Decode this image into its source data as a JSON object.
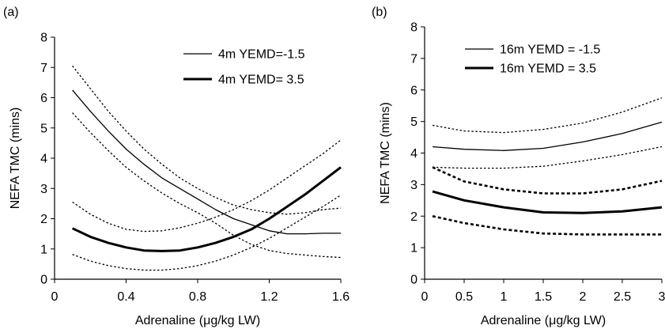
{
  "chart_data": [
    {
      "type": "line",
      "panel_label": "(a)",
      "xlabel": "Adrenaline (μg/kg LW)",
      "ylabel": "NEFA TMC (mins)",
      "xlim": [
        0,
        1.6
      ],
      "ylim": [
        0,
        8
      ],
      "xticks": [
        "0",
        "0.4",
        "0.8",
        "1.2",
        "1.6"
      ],
      "yticks": [
        "0",
        "1",
        "2",
        "3",
        "4",
        "5",
        "6",
        "7",
        "8"
      ],
      "legend_position": "top-right",
      "series": [
        {
          "name": "4m YEMD=-1.5",
          "style": "thin-solid",
          "x": [
            0.1,
            0.2,
            0.3,
            0.4,
            0.5,
            0.6,
            0.7,
            0.8,
            0.9,
            1.0,
            1.1,
            1.2,
            1.3,
            1.4,
            1.5,
            1.6
          ],
          "y": [
            6.25,
            5.55,
            4.9,
            4.3,
            3.8,
            3.35,
            3.0,
            2.65,
            2.3,
            2.0,
            1.8,
            1.6,
            1.5,
            1.5,
            1.52,
            1.52
          ]
        },
        {
          "name": "",
          "style": "thin-dotted",
          "x": [
            0.1,
            0.2,
            0.3,
            0.4,
            0.5,
            0.6,
            0.7,
            0.8,
            0.9,
            1.0,
            1.1,
            1.2,
            1.3,
            1.4,
            1.5,
            1.6
          ],
          "y": [
            7.05,
            6.3,
            5.55,
            4.9,
            4.3,
            3.8,
            3.35,
            3.0,
            2.7,
            2.45,
            2.3,
            2.2,
            2.15,
            2.2,
            2.3,
            2.35
          ]
        },
        {
          "name": "",
          "style": "thin-dotted",
          "x": [
            0.1,
            0.2,
            0.3,
            0.4,
            0.5,
            0.6,
            0.7,
            0.8,
            0.9,
            1.0,
            1.1,
            1.2,
            1.3,
            1.4,
            1.5,
            1.6
          ],
          "y": [
            5.5,
            4.85,
            4.25,
            3.7,
            3.25,
            2.85,
            2.5,
            2.2,
            1.85,
            1.45,
            1.15,
            0.95,
            0.85,
            0.8,
            0.75,
            0.72
          ]
        },
        {
          "name": "4m YEMD= 3.5",
          "style": "thick-solid",
          "x": [
            0.1,
            0.2,
            0.3,
            0.4,
            0.5,
            0.6,
            0.7,
            0.8,
            0.9,
            1.0,
            1.1,
            1.2,
            1.3,
            1.4,
            1.5,
            1.6
          ],
          "y": [
            1.68,
            1.4,
            1.2,
            1.05,
            0.95,
            0.93,
            0.95,
            1.05,
            1.2,
            1.4,
            1.65,
            2.0,
            2.4,
            2.8,
            3.25,
            3.7
          ]
        },
        {
          "name": "",
          "style": "thin-dotted",
          "x": [
            0.1,
            0.2,
            0.3,
            0.4,
            0.5,
            0.6,
            0.7,
            0.8,
            0.9,
            1.0,
            1.1,
            1.2,
            1.3,
            1.4,
            1.5,
            1.6
          ],
          "y": [
            2.55,
            2.15,
            1.85,
            1.65,
            1.58,
            1.6,
            1.7,
            1.85,
            2.05,
            2.3,
            2.6,
            2.95,
            3.35,
            3.75,
            4.15,
            4.6
          ]
        },
        {
          "name": "",
          "style": "thin-dotted",
          "x": [
            0.1,
            0.2,
            0.3,
            0.4,
            0.5,
            0.6,
            0.7,
            0.8,
            0.9,
            1.0,
            1.1,
            1.2,
            1.3,
            1.4,
            1.5,
            1.6
          ],
          "y": [
            0.82,
            0.6,
            0.45,
            0.35,
            0.3,
            0.3,
            0.35,
            0.45,
            0.6,
            0.8,
            1.05,
            1.35,
            1.7,
            2.05,
            2.4,
            2.78
          ]
        }
      ]
    },
    {
      "type": "line",
      "panel_label": "(b)",
      "xlabel": "Adrenaline (μg/kg LW)",
      "ylabel": "NEFA TMC (mins)",
      "xlim": [
        0,
        3
      ],
      "ylim": [
        0,
        8
      ],
      "xticks": [
        "0",
        "0.5",
        "1",
        "1.5",
        "2",
        "2.5",
        "3"
      ],
      "yticks": [
        "0",
        "1",
        "2",
        "3",
        "4",
        "5",
        "6",
        "7",
        "8"
      ],
      "legend_position": "top-right",
      "series": [
        {
          "name": "16m YEMD = -1.5",
          "style": "thin-solid",
          "x": [
            0.1,
            0.5,
            1.0,
            1.5,
            2.0,
            2.5,
            3.0
          ],
          "y": [
            4.2,
            4.12,
            4.08,
            4.15,
            4.35,
            4.62,
            4.98
          ]
        },
        {
          "name": "",
          "style": "thin-dotted",
          "x": [
            0.1,
            0.5,
            1.0,
            1.5,
            2.0,
            2.5,
            3.0
          ],
          "y": [
            4.88,
            4.7,
            4.65,
            4.75,
            4.95,
            5.3,
            5.75
          ]
        },
        {
          "name": "",
          "style": "thin-dotted",
          "x": [
            0.1,
            0.5,
            1.0,
            1.5,
            2.0,
            2.5,
            3.0
          ],
          "y": [
            3.55,
            3.52,
            3.52,
            3.58,
            3.75,
            3.95,
            4.2
          ]
        },
        {
          "name": "16m YEMD = 3.5",
          "style": "thick-solid",
          "x": [
            0.1,
            0.5,
            1.0,
            1.5,
            2.0,
            2.5,
            3.0
          ],
          "y": [
            2.78,
            2.5,
            2.28,
            2.12,
            2.1,
            2.15,
            2.28
          ]
        },
        {
          "name": "",
          "style": "thick-dashed",
          "x": [
            0.1,
            0.5,
            1.0,
            1.5,
            2.0,
            2.5,
            3.0
          ],
          "y": [
            3.55,
            3.1,
            2.85,
            2.72,
            2.72,
            2.85,
            3.12
          ]
        },
        {
          "name": "",
          "style": "thick-dashed",
          "x": [
            0.1,
            0.5,
            1.0,
            1.5,
            2.0,
            2.5,
            3.0
          ],
          "y": [
            2.0,
            1.78,
            1.58,
            1.45,
            1.42,
            1.42,
            1.42
          ]
        }
      ]
    }
  ]
}
